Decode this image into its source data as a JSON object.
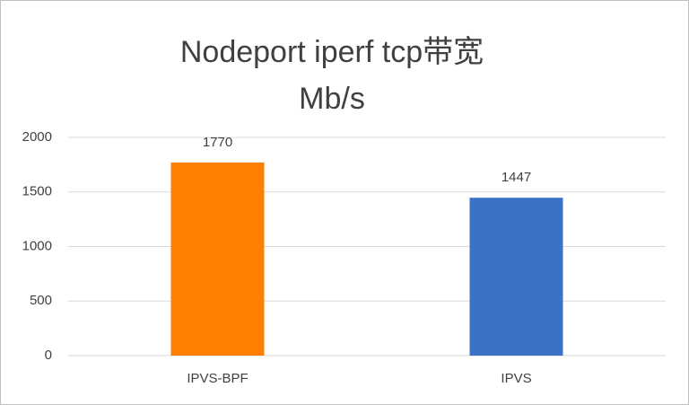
{
  "chart_data": {
    "type": "bar",
    "title": "Nodeport iperf tcp带宽",
    "subtitle": "Mb/s",
    "categories": [
      "IPVS-BPF",
      "IPVS"
    ],
    "values": [
      1770,
      1447
    ],
    "colors": [
      "#ff7f00",
      "#3a72c8"
    ],
    "ylim": [
      0,
      2000
    ],
    "yticks": [
      0,
      500,
      1000,
      1500,
      2000
    ],
    "grid": true,
    "data_labels": true
  }
}
